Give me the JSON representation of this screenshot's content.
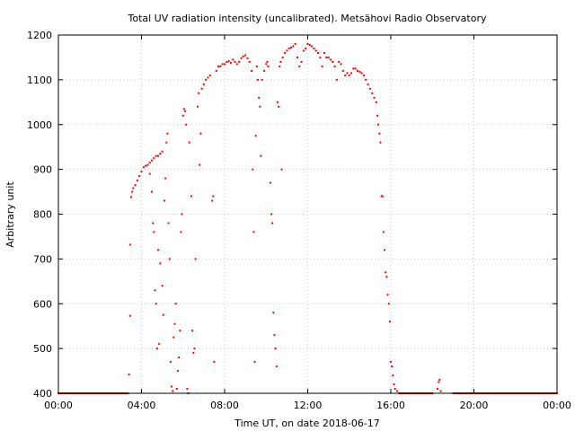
{
  "chart_data": {
    "type": "scatter",
    "title": "Total UV radiation intensity (uncalibrated). Metsähovi Radio Observatory",
    "xlabel": "Time UT, on date 2018-06-17",
    "ylabel": "Arbitrary unit",
    "xlim": [
      0,
      24
    ],
    "ylim": [
      400,
      1200
    ],
    "grid": true,
    "marker_color": "#ff0000",
    "x_ticks": [
      {
        "v": 0,
        "label": "00:00"
      },
      {
        "v": 4,
        "label": "04:00"
      },
      {
        "v": 8,
        "label": "08:00"
      },
      {
        "v": 12,
        "label": "12:00"
      },
      {
        "v": 16,
        "label": "16:00"
      },
      {
        "v": 20,
        "label": "20:00"
      },
      {
        "v": 24,
        "label": "00:00"
      }
    ],
    "y_ticks": [
      {
        "v": 400,
        "label": "400"
      },
      {
        "v": 500,
        "label": "500"
      },
      {
        "v": 600,
        "label": "600"
      },
      {
        "v": 700,
        "label": "700"
      },
      {
        "v": 800,
        "label": "800"
      },
      {
        "v": 900,
        "label": "900"
      },
      {
        "v": 1000,
        "label": "1000"
      },
      {
        "v": 1100,
        "label": "1100"
      },
      {
        "v": 1200,
        "label": "1200"
      }
    ],
    "series_points": [
      [
        0.0,
        400
      ],
      [
        1.0,
        400
      ],
      [
        2.0,
        400
      ],
      [
        3.0,
        400
      ],
      [
        3.35,
        400
      ],
      [
        3.4,
        442
      ],
      [
        3.45,
        573
      ],
      [
        3.45,
        732
      ],
      [
        3.5,
        838
      ],
      [
        3.55,
        850
      ],
      [
        3.6,
        858
      ],
      [
        3.7,
        865
      ],
      [
        3.8,
        875
      ],
      [
        3.9,
        885
      ],
      [
        4.0,
        895
      ],
      [
        4.1,
        905
      ],
      [
        4.2,
        908
      ],
      [
        4.3,
        910
      ],
      [
        4.4,
        915
      ],
      [
        4.5,
        920
      ],
      [
        4.6,
        925
      ],
      [
        4.7,
        930
      ],
      [
        4.8,
        930
      ],
      [
        4.9,
        935
      ],
      [
        5.0,
        940
      ],
      [
        4.4,
        890
      ],
      [
        4.5,
        850
      ],
      [
        4.55,
        780
      ],
      [
        4.6,
        760
      ],
      [
        4.65,
        630
      ],
      [
        4.7,
        600
      ],
      [
        4.75,
        500
      ],
      [
        4.8,
        720
      ],
      [
        4.85,
        510
      ],
      [
        4.9,
        690
      ],
      [
        5.0,
        640
      ],
      [
        5.05,
        575
      ],
      [
        5.1,
        830
      ],
      [
        5.15,
        880
      ],
      [
        5.2,
        960
      ],
      [
        5.25,
        980
      ],
      [
        5.3,
        780
      ],
      [
        5.35,
        700
      ],
      [
        5.4,
        470
      ],
      [
        5.45,
        415
      ],
      [
        5.5,
        405
      ],
      [
        5.55,
        525
      ],
      [
        5.6,
        555
      ],
      [
        5.65,
        600
      ],
      [
        5.7,
        410
      ],
      [
        5.75,
        450
      ],
      [
        5.8,
        480
      ],
      [
        5.85,
        540
      ],
      [
        5.9,
        760
      ],
      [
        5.95,
        800
      ],
      [
        6.0,
        1020
      ],
      [
        6.05,
        1035
      ],
      [
        6.1,
        1030
      ],
      [
        6.15,
        1000
      ],
      [
        6.2,
        410
      ],
      [
        6.25,
        400
      ],
      [
        6.3,
        960
      ],
      [
        6.4,
        840
      ],
      [
        6.45,
        540
      ],
      [
        6.5,
        490
      ],
      [
        6.55,
        500
      ],
      [
        6.6,
        700
      ],
      [
        6.7,
        1040
      ],
      [
        6.75,
        1070
      ],
      [
        6.8,
        910
      ],
      [
        6.85,
        980
      ],
      [
        6.9,
        1080
      ],
      [
        7.0,
        1090
      ],
      [
        7.1,
        1100
      ],
      [
        7.2,
        1105
      ],
      [
        7.3,
        1110
      ],
      [
        7.4,
        830
      ],
      [
        7.45,
        840
      ],
      [
        7.5,
        470
      ],
      [
        7.6,
        1120
      ],
      [
        7.7,
        1130
      ],
      [
        7.8,
        1130
      ],
      [
        7.9,
        1135
      ],
      [
        8.0,
        1135
      ],
      [
        8.1,
        1140
      ],
      [
        8.2,
        1142
      ],
      [
        8.3,
        1138
      ],
      [
        8.4,
        1145
      ],
      [
        8.5,
        1140
      ],
      [
        8.6,
        1135
      ],
      [
        8.7,
        1140
      ],
      [
        8.8,
        1148
      ],
      [
        8.9,
        1152
      ],
      [
        9.0,
        1155
      ],
      [
        9.1,
        1148
      ],
      [
        9.2,
        1140
      ],
      [
        9.3,
        1120
      ],
      [
        9.35,
        900
      ],
      [
        9.4,
        760
      ],
      [
        9.45,
        470
      ],
      [
        9.5,
        975
      ],
      [
        9.55,
        1130
      ],
      [
        9.6,
        1100
      ],
      [
        9.65,
        1060
      ],
      [
        9.7,
        1040
      ],
      [
        9.75,
        930
      ],
      [
        9.8,
        1100
      ],
      [
        9.9,
        1120
      ],
      [
        10.0,
        1135
      ],
      [
        10.05,
        1140
      ],
      [
        10.1,
        1130
      ],
      [
        10.2,
        870
      ],
      [
        10.25,
        800
      ],
      [
        10.3,
        780
      ],
      [
        10.35,
        580
      ],
      [
        10.4,
        530
      ],
      [
        10.45,
        500
      ],
      [
        10.5,
        460
      ],
      [
        10.55,
        1050
      ],
      [
        10.6,
        1040
      ],
      [
        10.65,
        1130
      ],
      [
        10.7,
        1140
      ],
      [
        10.75,
        900
      ],
      [
        10.8,
        1150
      ],
      [
        10.9,
        1160
      ],
      [
        11.0,
        1165
      ],
      [
        11.1,
        1170
      ],
      [
        11.2,
        1172
      ],
      [
        11.3,
        1175
      ],
      [
        11.4,
        1180
      ],
      [
        11.5,
        1150
      ],
      [
        11.6,
        1130
      ],
      [
        11.7,
        1140
      ],
      [
        11.8,
        1165
      ],
      [
        11.9,
        1170
      ],
      [
        12.0,
        1180
      ],
      [
        12.1,
        1178
      ],
      [
        12.2,
        1175
      ],
      [
        12.3,
        1170
      ],
      [
        12.4,
        1165
      ],
      [
        12.5,
        1160
      ],
      [
        12.6,
        1150
      ],
      [
        12.7,
        1130
      ],
      [
        12.8,
        1160
      ],
      [
        12.9,
        1150
      ],
      [
        13.0,
        1150
      ],
      [
        13.1,
        1145
      ],
      [
        13.2,
        1140
      ],
      [
        13.3,
        1130
      ],
      [
        13.4,
        1100
      ],
      [
        13.5,
        1140
      ],
      [
        13.6,
        1135
      ],
      [
        13.7,
        1120
      ],
      [
        13.8,
        1110
      ],
      [
        13.9,
        1115
      ],
      [
        14.0,
        1110
      ],
      [
        14.1,
        1115
      ],
      [
        14.2,
        1125
      ],
      [
        14.3,
        1125
      ],
      [
        14.4,
        1120
      ],
      [
        14.5,
        1118
      ],
      [
        14.6,
        1115
      ],
      [
        14.7,
        1110
      ],
      [
        14.8,
        1100
      ],
      [
        14.9,
        1090
      ],
      [
        15.0,
        1080
      ],
      [
        15.1,
        1070
      ],
      [
        15.2,
        1060
      ],
      [
        15.3,
        1050
      ],
      [
        15.35,
        1020
      ],
      [
        15.4,
        1000
      ],
      [
        15.45,
        980
      ],
      [
        15.5,
        960
      ],
      [
        15.55,
        840
      ],
      [
        15.6,
        840
      ],
      [
        15.65,
        760
      ],
      [
        15.7,
        720
      ],
      [
        15.75,
        670
      ],
      [
        15.8,
        660
      ],
      [
        15.85,
        620
      ],
      [
        15.9,
        600
      ],
      [
        15.95,
        560
      ],
      [
        16.0,
        470
      ],
      [
        16.05,
        460
      ],
      [
        16.1,
        440
      ],
      [
        16.15,
        420
      ],
      [
        16.2,
        410
      ],
      [
        16.3,
        405
      ],
      [
        16.4,
        400
      ],
      [
        16.6,
        400
      ],
      [
        17.0,
        400
      ],
      [
        18.0,
        400
      ],
      [
        18.25,
        410
      ],
      [
        18.3,
        425
      ],
      [
        18.35,
        430
      ],
      [
        18.4,
        405
      ],
      [
        19.0,
        400
      ],
      [
        20.0,
        400
      ],
      [
        21.0,
        400
      ],
      [
        22.0,
        400
      ],
      [
        23.0,
        400
      ],
      [
        24.0,
        400
      ]
    ]
  }
}
